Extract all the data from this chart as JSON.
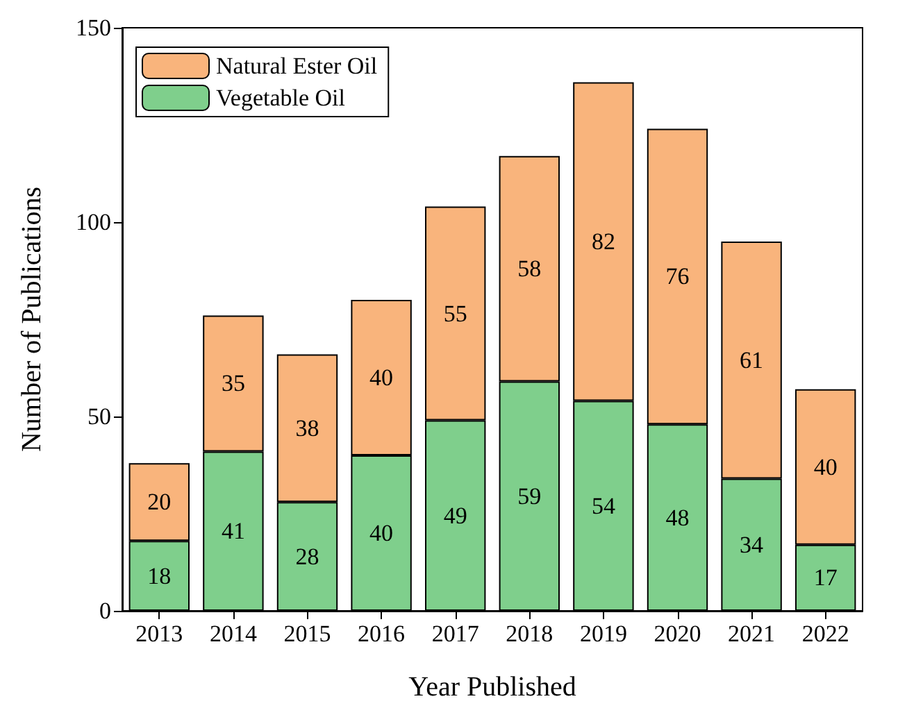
{
  "chart_data": {
    "type": "bar",
    "stacked": true,
    "xlabel": "Year Published",
    "ylabel": "Number of Publications",
    "categories": [
      "2013",
      "2014",
      "2015",
      "2016",
      "2017",
      "2018",
      "2019",
      "2020",
      "2021",
      "2022"
    ],
    "series": [
      {
        "name": "Vegetable Oil",
        "color": "#7fcf8c",
        "values": [
          18,
          41,
          28,
          40,
          49,
          59,
          54,
          48,
          34,
          17
        ]
      },
      {
        "name": "Natural Ester Oil",
        "color": "#f9b47c",
        "values": [
          20,
          35,
          38,
          40,
          55,
          58,
          82,
          76,
          61,
          40
        ]
      }
    ],
    "ylim": [
      0,
      150
    ],
    "yticks": [
      0,
      50,
      100,
      150
    ],
    "data_labels": true,
    "legend": "top left",
    "grid": false
  }
}
